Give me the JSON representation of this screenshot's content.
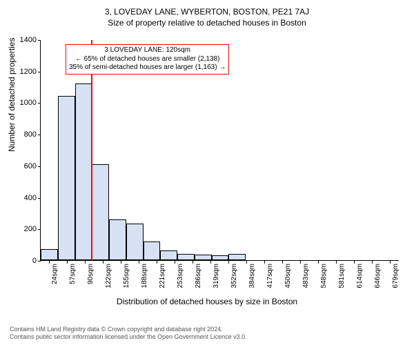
{
  "title": {
    "line1": "3, LOVEDAY LANE, WYBERTON, BOSTON, PE21 7AJ",
    "line2": "Size of property relative to detached houses in Boston",
    "fontsize1": 12,
    "fontsize2": 12
  },
  "chart": {
    "type": "histogram",
    "ylabel": "Number of detached properties",
    "xlabel": "Distribution of detached houses by size in Boston",
    "ylim": [
      0,
      1400
    ],
    "ytick_step": 200,
    "bar_fill": "#d6e1f4",
    "bar_stroke": "#000000",
    "background": "#ffffff",
    "values": [
      70,
      1040,
      1120,
      610,
      260,
      230,
      120,
      60,
      40,
      35,
      30,
      40,
      0,
      0,
      0,
      0,
      0,
      0,
      0,
      0,
      0
    ],
    "xticks": [
      "24sqm",
      "57sqm",
      "90sqm",
      "122sqm",
      "155sqm",
      "188sqm",
      "221sqm",
      "253sqm",
      "286sqm",
      "319sqm",
      "352sqm",
      "384sqm",
      "417sqm",
      "450sqm",
      "483sqm",
      "548sqm",
      "581sqm",
      "614sqm",
      "646sqm",
      "679sqm"
    ],
    "marker": {
      "color": "#ff0000",
      "position_index": 2.95
    },
    "annotation": {
      "border_color": "#ff0000",
      "line1": "3 LOVEDAY LANE: 120sqm",
      "line2": "← 65% of detached houses are smaller (2,138)",
      "line3": "35% of semi-detached houses are larger (1,163) →"
    }
  },
  "footer": {
    "line1": "Contains HM Land Registry data © Crown copyright and database right 2024.",
    "line2": "Contains public sector information licensed under the Open Government Licence v3.0."
  }
}
